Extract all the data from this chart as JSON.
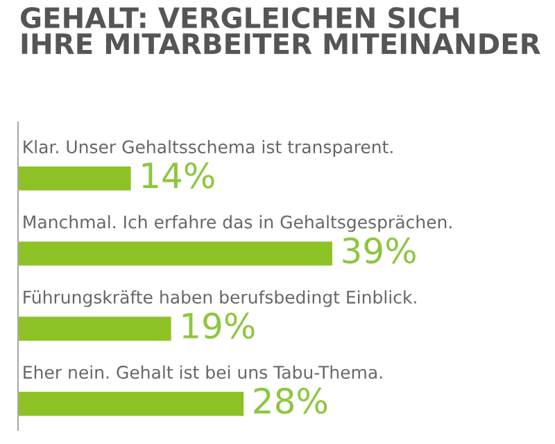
{
  "chart_data": {
    "type": "bar",
    "orientation": "horizontal",
    "title": "GEHALT: VERGLEICHEN SICH\nIHRE MITARBEITER MITEINANDER",
    "categories": [
      "Klar. Unser Gehaltsschema ist transparent.",
      "Manchmal. Ich erfahre das in Gehaltsgesprächen.",
      "Führungskräfte haben berufsbedingt Einblick.",
      "Eher nein. Gehalt ist bei uns Tabu-Thema."
    ],
    "values": [
      14,
      39,
      19,
      28
    ],
    "value_labels": [
      "14%",
      "39%",
      "19%",
      "28%"
    ],
    "color": "#8dc226"
  }
}
